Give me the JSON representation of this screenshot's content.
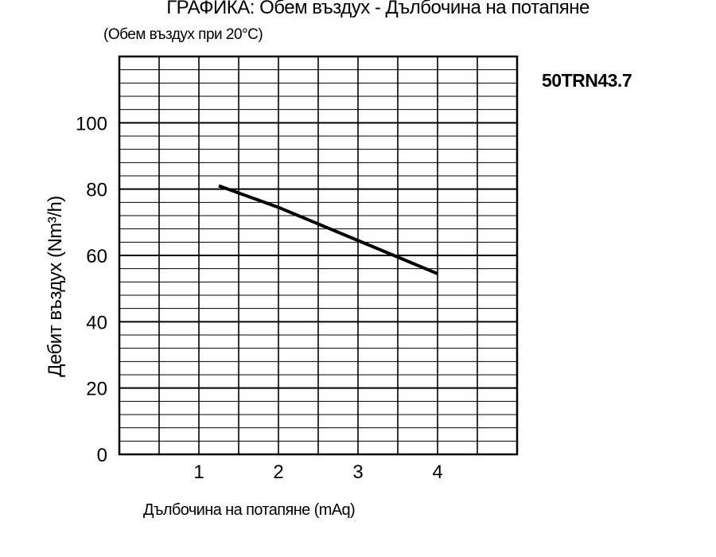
{
  "chart_data": {
    "type": "line",
    "title": "ГРАФИКА: Обем въздух - Дълбочина на потапяне",
    "subtitle": "(Обем въздух при 20°C)",
    "model": "50TRN43.7",
    "xlabel": "Дълбочина на потапяне (mAq)",
    "ylabel": "Дебит въздух (Nm³/h)",
    "xlim": [
      0,
      5
    ],
    "ylim": [
      0,
      120
    ],
    "x_ticks": [
      1,
      2,
      3,
      4
    ],
    "y_ticks": [
      0,
      20,
      40,
      60,
      80,
      100
    ],
    "grid": true,
    "series": [
      {
        "x": [
          1.25,
          2,
          3,
          4
        ],
        "y": [
          81,
          74.5,
          64.5,
          54.5
        ],
        "color": "#000000"
      }
    ]
  }
}
